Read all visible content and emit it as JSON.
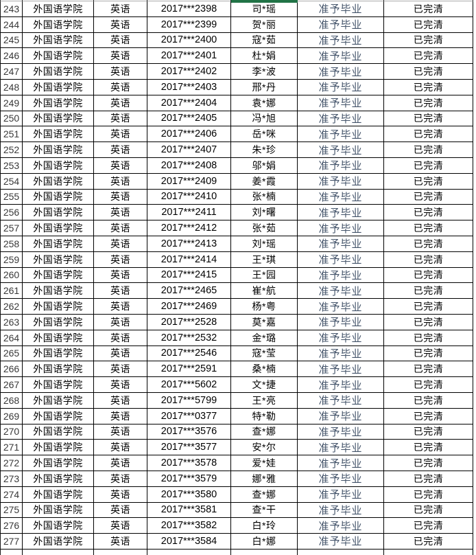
{
  "ui": {
    "colors": {
      "selection_green": "#217346",
      "status_text_blue_gray": "#44546A",
      "grid_border": "#000000",
      "faint_top_gridline": "#ababab"
    }
  },
  "table": {
    "columns": [
      {
        "key": "no",
        "name": "row-number"
      },
      {
        "key": "college",
        "name": "college"
      },
      {
        "key": "major",
        "name": "major"
      },
      {
        "key": "sid",
        "name": "student-id"
      },
      {
        "key": "name",
        "name": "student-name"
      },
      {
        "key": "status",
        "name": "graduation-status"
      },
      {
        "key": "clearance",
        "name": "fee-clearance"
      }
    ],
    "rows": [
      {
        "no": "243",
        "college": "外国语学院",
        "major": "英语",
        "sid": "2017***2398",
        "name": "司*瑶",
        "status": "准予毕业",
        "clearance": "已完清"
      },
      {
        "no": "244",
        "college": "外国语学院",
        "major": "英语",
        "sid": "2017***2399",
        "name": "贺*丽",
        "status": "准予毕业",
        "clearance": "已完清"
      },
      {
        "no": "245",
        "college": "外国语学院",
        "major": "英语",
        "sid": "2017***2400",
        "name": "寇*茹",
        "status": "准予毕业",
        "clearance": "已完清"
      },
      {
        "no": "246",
        "college": "外国语学院",
        "major": "英语",
        "sid": "2017***2401",
        "name": "杜*娟",
        "status": "准予毕业",
        "clearance": "已完清"
      },
      {
        "no": "247",
        "college": "外国语学院",
        "major": "英语",
        "sid": "2017***2402",
        "name": "李*波",
        "status": "准予毕业",
        "clearance": "已完清"
      },
      {
        "no": "248",
        "college": "外国语学院",
        "major": "英语",
        "sid": "2017***2403",
        "name": "邢*丹",
        "status": "准予毕业",
        "clearance": "已完清"
      },
      {
        "no": "249",
        "college": "外国语学院",
        "major": "英语",
        "sid": "2017***2404",
        "name": "袁*娜",
        "status": "准予毕业",
        "clearance": "已完清"
      },
      {
        "no": "250",
        "college": "外国语学院",
        "major": "英语",
        "sid": "2017***2405",
        "name": "冯*旭",
        "status": "准予毕业",
        "clearance": "已完清"
      },
      {
        "no": "251",
        "college": "外国语学院",
        "major": "英语",
        "sid": "2017***2406",
        "name": "岳*咪",
        "status": "准予毕业",
        "clearance": "已完清"
      },
      {
        "no": "252",
        "college": "外国语学院",
        "major": "英语",
        "sid": "2017***2407",
        "name": "朱*珍",
        "status": "准予毕业",
        "clearance": "已完清"
      },
      {
        "no": "253",
        "college": "外国语学院",
        "major": "英语",
        "sid": "2017***2408",
        "name": "邬*娟",
        "status": "准予毕业",
        "clearance": "已完清"
      },
      {
        "no": "254",
        "college": "外国语学院",
        "major": "英语",
        "sid": "2017***2409",
        "name": "姜*霞",
        "status": "准予毕业",
        "clearance": "已完清"
      },
      {
        "no": "255",
        "college": "外国语学院",
        "major": "英语",
        "sid": "2017***2410",
        "name": "张*楠",
        "status": "准予毕业",
        "clearance": "已完清"
      },
      {
        "no": "256",
        "college": "外国语学院",
        "major": "英语",
        "sid": "2017***2411",
        "name": "刘*曙",
        "status": "准予毕业",
        "clearance": "已完清"
      },
      {
        "no": "257",
        "college": "外国语学院",
        "major": "英语",
        "sid": "2017***2412",
        "name": "张*茹",
        "status": "准予毕业",
        "clearance": "已完清"
      },
      {
        "no": "258",
        "college": "外国语学院",
        "major": "英语",
        "sid": "2017***2413",
        "name": "刘*瑶",
        "status": "准予毕业",
        "clearance": "已完清"
      },
      {
        "no": "259",
        "college": "外国语学院",
        "major": "英语",
        "sid": "2017***2414",
        "name": "王*琪",
        "status": "准予毕业",
        "clearance": "已完清"
      },
      {
        "no": "260",
        "college": "外国语学院",
        "major": "英语",
        "sid": "2017***2415",
        "name": "王*园",
        "status": "准予毕业",
        "clearance": "已完清"
      },
      {
        "no": "261",
        "college": "外国语学院",
        "major": "英语",
        "sid": "2017***2465",
        "name": "崔*航",
        "status": "准予毕业",
        "clearance": "已完清"
      },
      {
        "no": "262",
        "college": "外国语学院",
        "major": "英语",
        "sid": "2017***2469",
        "name": "杨*粤",
        "status": "准予毕业",
        "clearance": "已完清"
      },
      {
        "no": "263",
        "college": "外国语学院",
        "major": "英语",
        "sid": "2017***2528",
        "name": "莫*嘉",
        "status": "准予毕业",
        "clearance": "已完清"
      },
      {
        "no": "264",
        "college": "外国语学院",
        "major": "英语",
        "sid": "2017***2532",
        "name": "金*璐",
        "status": "准予毕业",
        "clearance": "已完清"
      },
      {
        "no": "265",
        "college": "外国语学院",
        "major": "英语",
        "sid": "2017***2546",
        "name": "寇*莹",
        "status": "准予毕业",
        "clearance": "已完清"
      },
      {
        "no": "266",
        "college": "外国语学院",
        "major": "英语",
        "sid": "2017***2591",
        "name": "桑*楠",
        "status": "准予毕业",
        "clearance": "已完清"
      },
      {
        "no": "267",
        "college": "外国语学院",
        "major": "英语",
        "sid": "2017***5602",
        "name": "文*捷",
        "status": "准予毕业",
        "clearance": "已完清"
      },
      {
        "no": "268",
        "college": "外国语学院",
        "major": "英语",
        "sid": "2017***5799",
        "name": "王*亮",
        "status": "准予毕业",
        "clearance": "已完清"
      },
      {
        "no": "269",
        "college": "外国语学院",
        "major": "英语",
        "sid": "2017***0377",
        "name": "特*勒",
        "status": "准予毕业",
        "clearance": "已完清"
      },
      {
        "no": "270",
        "college": "外国语学院",
        "major": "英语",
        "sid": "2017***3576",
        "name": "查*娜",
        "status": "准予毕业",
        "clearance": "已完清"
      },
      {
        "no": "271",
        "college": "外国语学院",
        "major": "英语",
        "sid": "2017***3577",
        "name": "安*尔",
        "status": "准予毕业",
        "clearance": "已完清"
      },
      {
        "no": "272",
        "college": "外国语学院",
        "major": "英语",
        "sid": "2017***3578",
        "name": "爱*娃",
        "status": "准予毕业",
        "clearance": "已完清"
      },
      {
        "no": "273",
        "college": "外国语学院",
        "major": "英语",
        "sid": "2017***3579",
        "name": "娜*雅",
        "status": "准予毕业",
        "clearance": "已完清"
      },
      {
        "no": "274",
        "college": "外国语学院",
        "major": "英语",
        "sid": "2017***3580",
        "name": "查*娜",
        "status": "准予毕业",
        "clearance": "已完清"
      },
      {
        "no": "275",
        "college": "外国语学院",
        "major": "英语",
        "sid": "2017***3581",
        "name": "查*干",
        "status": "准予毕业",
        "clearance": "已完清"
      },
      {
        "no": "276",
        "college": "外国语学院",
        "major": "英语",
        "sid": "2017***3582",
        "name": "白*玲",
        "status": "准予毕业",
        "clearance": "已完清"
      },
      {
        "no": "277",
        "college": "外国语学院",
        "major": "英语",
        "sid": "2017***3584",
        "name": "白*娜",
        "status": "准予毕业",
        "clearance": "已完清"
      }
    ]
  }
}
